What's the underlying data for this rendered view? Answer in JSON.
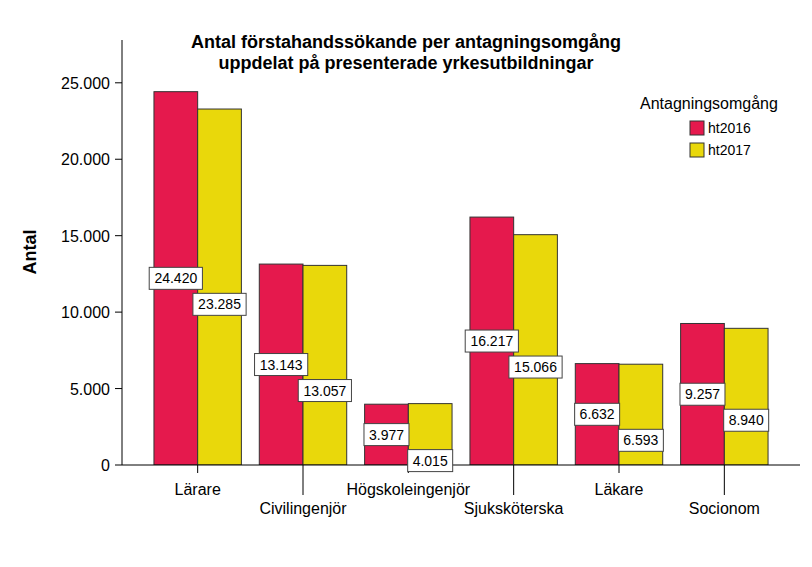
{
  "chart_data": {
    "type": "bar",
    "title": "Antal förstahandssökande per antagningsomgång\nuppdelat på presenterade yrkesutbildningar",
    "y_label": "Antal",
    "legend_title": "Antagningsomgång",
    "categories": [
      "Lärare",
      "Civilingenjör",
      "Högskoleingenjör",
      "Sjuksköterska",
      "Läkare",
      "Socionom"
    ],
    "series": [
      {
        "name": "ht2016",
        "color": "#e5194d",
        "values": [
          24420,
          13143,
          3977,
          16217,
          6632,
          9257
        ],
        "value_labels": [
          "24.420",
          "13.143",
          "3.977",
          "16.217",
          "6.632",
          "9.257"
        ]
      },
      {
        "name": "ht2017",
        "color": "#e9d80b",
        "values": [
          23285,
          13057,
          4015,
          15066,
          6593,
          8940
        ],
        "value_labels": [
          "23.285",
          "13.057",
          "4.015",
          "15.066",
          "6.593",
          "8.940"
        ]
      }
    ],
    "ylim": [
      0,
      27800
    ],
    "yticks": [
      0,
      {
        "value": 5000,
        "label": "5.000"
      },
      {
        "value": 10000,
        "label": "10.000"
      },
      {
        "value": 15000,
        "label": "15.000"
      },
      {
        "value": 20000,
        "label": "20.000"
      },
      {
        "value": 25000,
        "label": "25.000"
      }
    ],
    "grid": false,
    "legend": "top-right",
    "data_labels": true
  }
}
